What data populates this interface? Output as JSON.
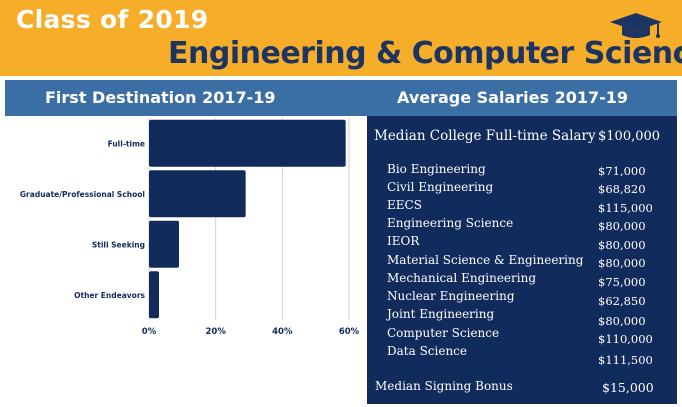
{
  "header": {
    "class_title": "Class of 2019",
    "main_title": "Engineering & Computer Science"
  },
  "left_heading": "First Destination 2017-19",
  "right_heading": "Average Salaries 2017-19",
  "colors": {
    "gold": "#f6ae2a",
    "navy": "#1c3461",
    "header_blue": "#3a6ea5",
    "panel_navy": "#102b5c",
    "bar": "#102b5c"
  },
  "chart_data": {
    "type": "bar",
    "orientation": "horizontal",
    "title": "First Destination 2017-19",
    "categories": [
      "Full-time",
      "Graduate/Professional School",
      "Still Seeking",
      "Other Endeavors"
    ],
    "values": [
      59,
      29,
      9,
      3
    ],
    "unit": "%",
    "xlim": [
      0,
      60
    ],
    "x_ticks": [
      "0%",
      "20%",
      "40%",
      "60%"
    ],
    "x_tick_values": [
      0,
      20,
      40,
      60
    ],
    "grid": true,
    "xlabel": "",
    "ylabel": ""
  },
  "salaries": {
    "median_label": "Median College Full-time Salary",
    "median_value": "$100,000",
    "departments": [
      {
        "name": "Bio Engineering",
        "salary": "$71,000"
      },
      {
        "name": "Civil Engineering",
        "salary": "$68,820"
      },
      {
        "name": "EECS",
        "salary": "$115,000"
      },
      {
        "name": "Engineering Science",
        "salary": "$80,000"
      },
      {
        "name": "IEOR",
        "salary": "$80,000"
      },
      {
        "name": "Material Science & Engineering",
        "salary": "$80,000"
      },
      {
        "name": "Mechanical Engineering",
        "salary": "$75,000"
      },
      {
        "name": "Nuclear Engineering",
        "salary": "$62,850"
      },
      {
        "name": "Joint Engineering",
        "salary": "$80,000"
      },
      {
        "name": "Computer Science",
        "salary": "$110,000"
      },
      {
        "name": "Data Science",
        "salary": "$111,500"
      }
    ],
    "bonus_label": "Median Signing Bonus",
    "bonus_value": "$15,000"
  },
  "icons": {
    "cap": "graduation-cap-icon"
  }
}
